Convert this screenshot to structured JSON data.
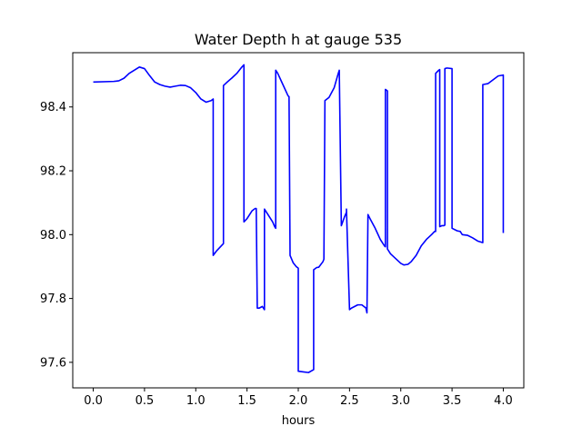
{
  "chart_data": {
    "type": "line",
    "title": "Water Depth h at gauge 535",
    "xlabel": "hours",
    "ylabel": "",
    "xlim": [
      -0.2,
      4.2
    ],
    "ylim": [
      97.52,
      98.57
    ],
    "xticks": [
      "0.0",
      "0.5",
      "1.0",
      "1.5",
      "2.0",
      "2.5",
      "3.0",
      "3.5",
      "4.0"
    ],
    "yticks": [
      "97.6",
      "97.8",
      "98.0",
      "98.2",
      "98.4"
    ],
    "grid": false,
    "legend": "none",
    "series": [
      {
        "color": "#0000ff",
        "x": [
          0.0,
          0.2,
          0.25,
          0.3,
          0.35,
          0.4,
          0.45,
          0.5,
          0.55,
          0.6,
          0.65,
          0.7,
          0.75,
          0.8,
          0.85,
          0.9,
          0.95,
          1.0,
          1.05,
          1.1,
          1.15,
          1.17,
          1.17,
          1.2,
          1.25,
          1.27,
          1.27,
          1.3,
          1.35,
          1.4,
          1.45,
          1.47,
          1.47,
          1.5,
          1.55,
          1.58,
          1.59,
          1.6,
          1.62,
          1.65,
          1.67,
          1.67,
          1.69,
          1.7,
          1.75,
          1.77,
          1.78,
          1.78,
          1.8,
          1.85,
          1.9,
          1.91,
          1.92,
          1.95,
          1.98,
          2.0,
          2.0,
          2.05,
          2.1,
          2.15,
          2.15,
          2.18,
          2.2,
          2.24,
          2.25,
          2.26,
          2.3,
          2.35,
          2.39,
          2.4,
          2.42,
          2.45,
          2.47,
          2.47,
          2.5,
          2.52,
          2.55,
          2.58,
          2.62,
          2.66,
          2.67,
          2.68,
          2.7,
          2.75,
          2.8,
          2.84,
          2.85,
          2.85,
          2.87,
          2.87,
          2.9,
          2.95,
          3.0,
          3.03,
          3.07,
          3.1,
          3.15,
          3.2,
          3.25,
          3.3,
          3.33,
          3.34,
          3.34,
          3.37,
          3.38,
          3.38,
          3.4,
          3.42,
          3.43,
          3.43,
          3.45,
          3.5,
          3.5,
          3.5,
          3.55,
          3.58,
          3.6,
          3.65,
          3.7,
          3.75,
          3.8,
          3.8,
          3.8,
          3.85,
          3.9,
          3.95,
          4.0,
          4.0
        ],
        "y": [
          98.478,
          98.48,
          98.482,
          98.49,
          98.505,
          98.515,
          98.525,
          98.52,
          98.498,
          98.478,
          98.47,
          98.465,
          98.462,
          98.465,
          98.468,
          98.467,
          98.46,
          98.445,
          98.425,
          98.415,
          98.42,
          98.425,
          97.935,
          97.948,
          97.965,
          97.972,
          98.467,
          98.476,
          98.49,
          98.505,
          98.525,
          98.532,
          98.04,
          98.05,
          98.075,
          98.082,
          98.082,
          97.77,
          97.77,
          97.775,
          97.765,
          98.08,
          98.07,
          98.065,
          98.04,
          98.025,
          98.02,
          98.515,
          98.505,
          98.47,
          98.435,
          98.432,
          97.935,
          97.912,
          97.9,
          97.895,
          97.572,
          97.57,
          97.568,
          97.577,
          97.89,
          97.897,
          97.898,
          97.915,
          97.923,
          98.42,
          98.43,
          98.46,
          98.505,
          98.515,
          98.028,
          98.055,
          98.07,
          98.08,
          97.765,
          97.77,
          97.775,
          97.78,
          97.78,
          97.77,
          97.755,
          98.063,
          98.05,
          98.02,
          97.985,
          97.965,
          97.962,
          98.455,
          98.45,
          97.955,
          97.94,
          97.925,
          97.91,
          97.905,
          97.907,
          97.915,
          97.935,
          97.965,
          97.985,
          98.0,
          98.01,
          98.01,
          98.505,
          98.515,
          98.517,
          98.025,
          98.028,
          98.028,
          98.03,
          98.52,
          98.522,
          98.52,
          98.52,
          98.02,
          98.012,
          98.01,
          98.0,
          97.998,
          97.99,
          97.98,
          97.975,
          97.975,
          98.47,
          98.473,
          98.485,
          98.497,
          98.5,
          98.005
        ]
      }
    ]
  }
}
